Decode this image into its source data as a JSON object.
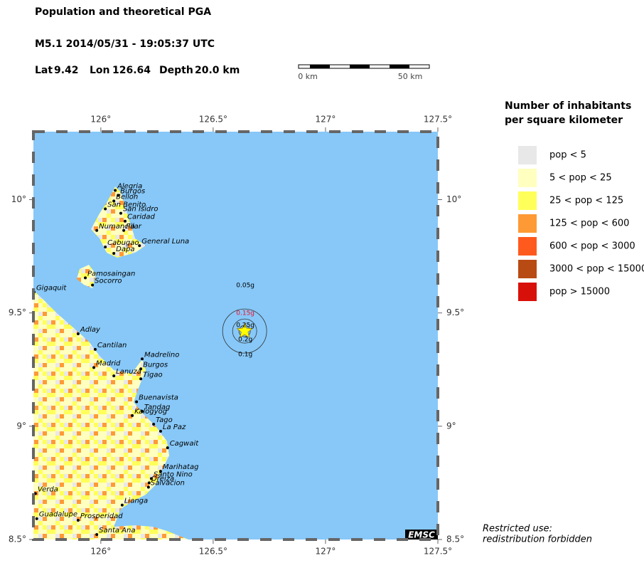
{
  "title": "Population and theoretical PGA",
  "event": "M5.1  2014/05/31 - 19:05:37 UTC",
  "location": [
    {
      "label": "Lat",
      "value": 9.42
    },
    {
      "label": "Lon",
      "value": 126.64
    },
    {
      "label": "Depth",
      "value": "20.0 km"
    }
  ],
  "scale_bar": [
    "0 km",
    "50 km"
  ],
  "map": {
    "xlim": [
      125.7,
      127.5
    ],
    "ylim": [
      8.5,
      10.3
    ],
    "xticks": [
      {
        "value": 126,
        "label": "126°"
      },
      {
        "value": 126.5,
        "label": "126.5°"
      },
      {
        "value": 127,
        "label": "127°"
      },
      {
        "value": 127.5,
        "label": "127.5°"
      }
    ],
    "yticks": [
      {
        "value": 10,
        "label": "10°"
      },
      {
        "value": 9.5,
        "label": "9.5°"
      },
      {
        "value": 9,
        "label": "9°"
      },
      {
        "value": 8.5,
        "label": "8.5°"
      }
    ],
    "epicenter": {
      "lon": 126.64,
      "lat": 9.42,
      "color": "#ffff00"
    },
    "pga": [
      {
        "label": "0.05g",
        "color": "#000000"
      },
      {
        "label": "0.15g",
        "color": "#e8102a"
      },
      {
        "label": "0.25g",
        "color": "#000000"
      },
      {
        "label": "0.2g",
        "color": "#000000"
      },
      {
        "label": "0.1g",
        "color": "#000000"
      }
    ],
    "towns": [
      {
        "name": "Alegria",
        "lon": 126.064,
        "lat": 10.041
      },
      {
        "name": "Burgos",
        "lon": 126.077,
        "lat": 10.019
      },
      {
        "name": "Bellon",
        "lon": 126.058,
        "lat": 9.994
      },
      {
        "name": "San Benito",
        "lon": 126.02,
        "lat": 9.959
      },
      {
        "name": "San Isidro",
        "lon": 126.089,
        "lat": 9.94
      },
      {
        "name": "Caridad",
        "lon": 126.108,
        "lat": 9.905
      },
      {
        "name": "Numancia",
        "lon": 125.982,
        "lat": 9.864
      },
      {
        "name": "Pilar",
        "lon": 126.102,
        "lat": 9.864
      },
      {
        "name": "Cabugao",
        "lon": 126.02,
        "lat": 9.791
      },
      {
        "name": "General Luna",
        "lon": 126.172,
        "lat": 9.797
      },
      {
        "name": "Dapa",
        "lon": 126.058,
        "lat": 9.763
      },
      {
        "name": "Pamosaingan",
        "lon": 125.931,
        "lat": 9.655
      },
      {
        "name": "Socorro",
        "lon": 125.963,
        "lat": 9.623
      },
      {
        "name": "Gigaquit",
        "lon": 125.703,
        "lat": 9.592
      },
      {
        "name": "Adlay",
        "lon": 125.899,
        "lat": 9.408
      },
      {
        "name": "Cantilan",
        "lon": 125.975,
        "lat": 9.339
      },
      {
        "name": "Madrelino",
        "lon": 126.184,
        "lat": 9.297
      },
      {
        "name": "Burgos",
        "lon": 126.178,
        "lat": 9.253
      },
      {
        "name": "Madrid",
        "lon": 125.969,
        "lat": 9.259
      },
      {
        "name": "Lanuza",
        "lon": 126.058,
        "lat": 9.222
      },
      {
        "name": "Tigao",
        "lon": 126.178,
        "lat": 9.209
      },
      {
        "name": "Buenavista",
        "lon": 126.159,
        "lat": 9.108
      },
      {
        "name": "Tandag",
        "lon": 126.184,
        "lat": 9.066
      },
      {
        "name": "Kalogyog",
        "lon": 126.14,
        "lat": 9.047
      },
      {
        "name": "Tago",
        "lon": 126.235,
        "lat": 9.009
      },
      {
        "name": "La Paz",
        "lon": 126.266,
        "lat": 8.978
      },
      {
        "name": "Cagwait",
        "lon": 126.297,
        "lat": 8.905
      },
      {
        "name": "Marihatag",
        "lon": 126.266,
        "lat": 8.801
      },
      {
        "name": "Santo Nino",
        "lon": 126.225,
        "lat": 8.769
      },
      {
        "name": "Oreiza",
        "lon": 126.215,
        "lat": 8.75
      },
      {
        "name": "Salvacion",
        "lon": 126.212,
        "lat": 8.731
      },
      {
        "name": "Lianga",
        "lon": 126.095,
        "lat": 8.652
      },
      {
        "name": "Verda",
        "lon": 125.709,
        "lat": 8.703
      },
      {
        "name": "Guadalupe",
        "lon": 125.715,
        "lat": 8.592
      },
      {
        "name": "Prosperidad",
        "lon": 125.899,
        "lat": 8.585
      },
      {
        "name": "Santa Ana",
        "lon": 125.982,
        "lat": 8.522
      }
    ],
    "badge": "EMSC"
  },
  "legend": {
    "title": [
      "Number of inhabitants",
      "per square kilometer"
    ],
    "items": [
      {
        "label": "pop < 5",
        "color": "#e8e8e8"
      },
      {
        "label": "5 < pop < 25",
        "color": "#ffffc0"
      },
      {
        "label": "25 < pop < 125",
        "color": "#ffff5a"
      },
      {
        "label": "125 < pop < 600",
        "color": "#fe9a35"
      },
      {
        "label": "600 < pop < 3000",
        "color": "#ff5a1e"
      },
      {
        "label": "3000 < pop < 15000",
        "color": "#b84a14"
      },
      {
        "label": "pop > 15000",
        "color": "#d8100a"
      }
    ]
  },
  "notice": [
    "Restricted use:",
    "redistribution forbidden"
  ]
}
